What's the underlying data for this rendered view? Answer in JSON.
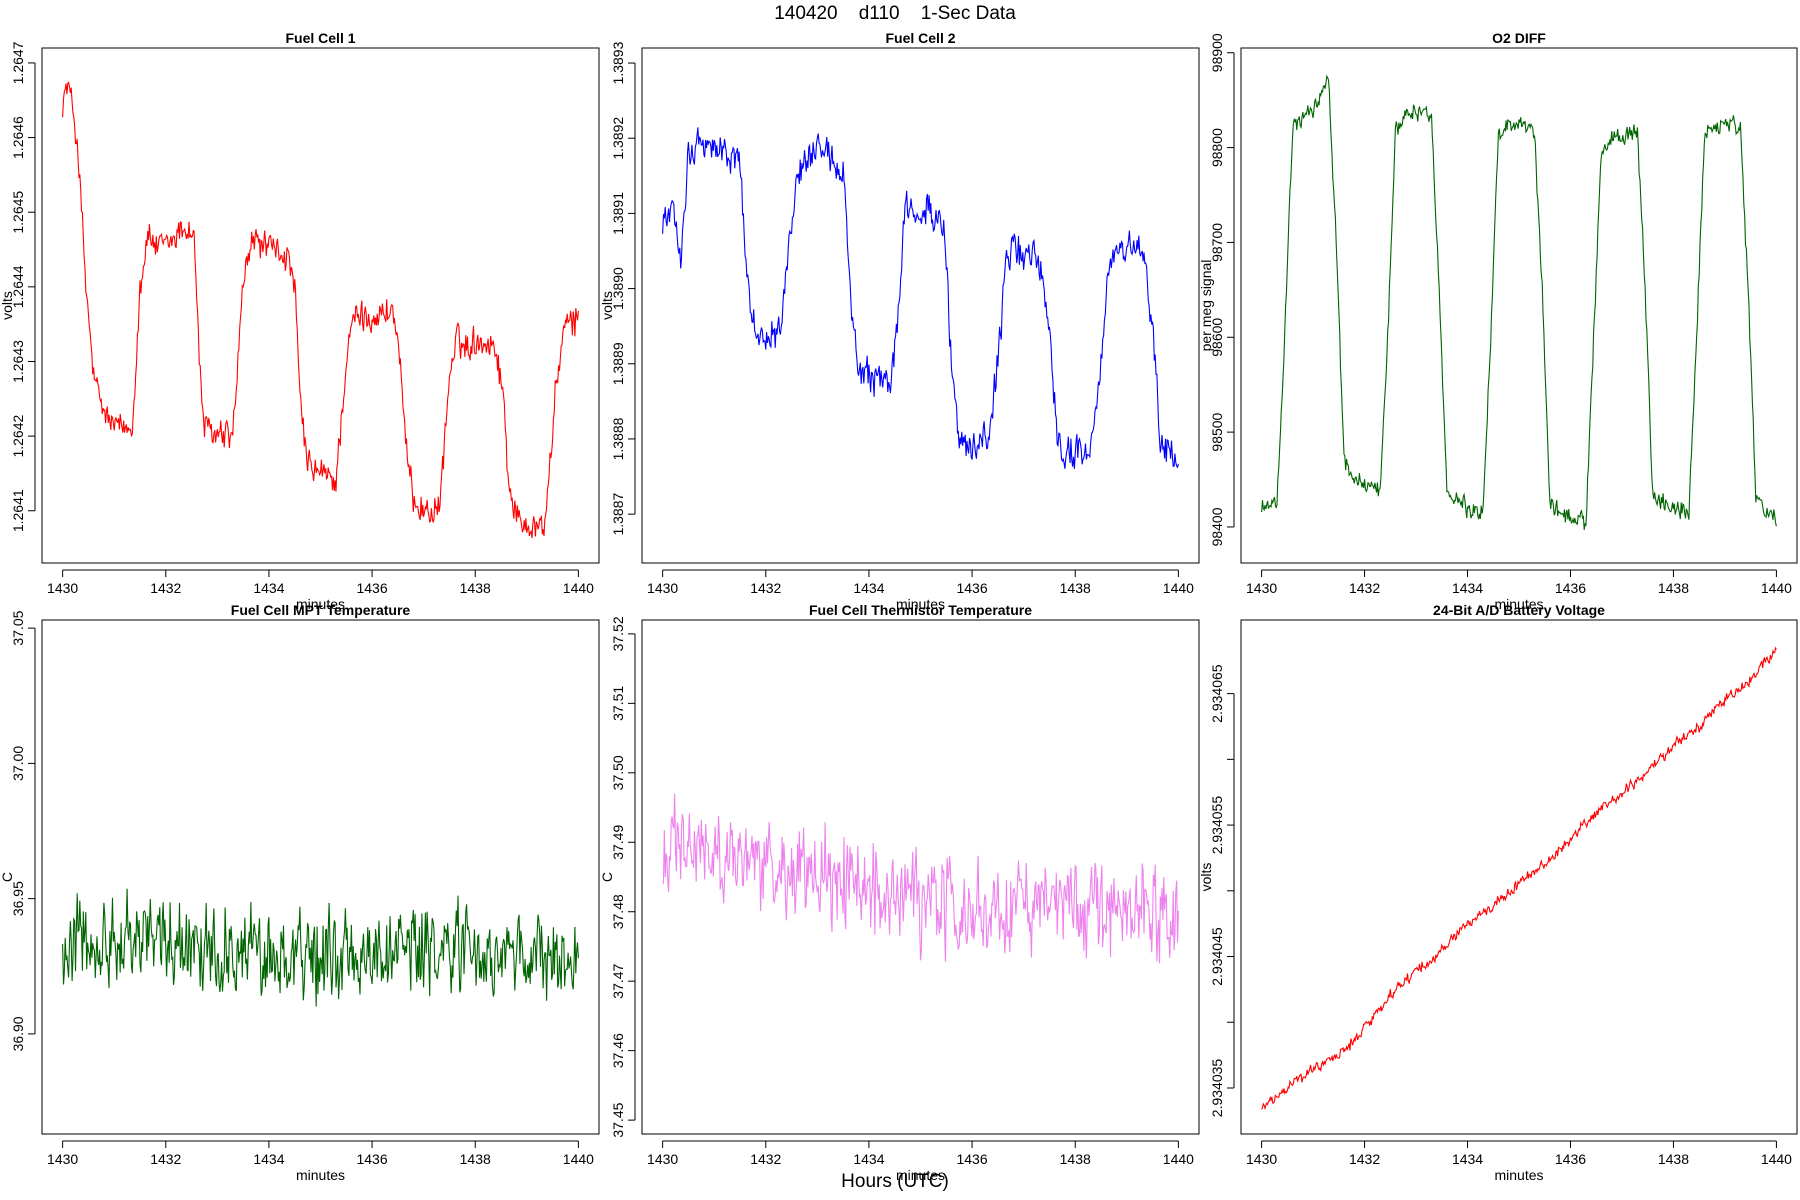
{
  "figure": {
    "title": "140420    d110    1-Sec Data",
    "footer": "Hours (UTC)"
  },
  "chart_data": [
    {
      "type": "line",
      "title": "Fuel Cell 1",
      "xlabel": "minutes",
      "ylabel": "volts",
      "color": "#ff0000",
      "xlim": [
        1429.6,
        1440.4
      ],
      "ylim": [
        1.26403,
        1.26472
      ],
      "xticks": [
        1430,
        1432,
        1434,
        1436,
        1438,
        1440
      ],
      "yticks": [
        1.2641,
        1.2642,
        1.2643,
        1.2644,
        1.2645,
        1.2646,
        1.2647
      ],
      "ytick_labels": [
        "1.2641",
        "1.2642",
        "1.2643",
        "1.2644",
        "1.2645",
        "1.2646",
        "1.2647"
      ],
      "noise": 2.8e-05,
      "x": [
        1430.0,
        1430.1,
        1430.2,
        1430.3,
        1430.45,
        1430.6,
        1430.75,
        1430.9,
        1431.1,
        1431.35,
        1431.5,
        1431.65,
        1431.85,
        1432.1,
        1432.35,
        1432.55,
        1432.65,
        1432.75,
        1433.0,
        1433.3,
        1433.5,
        1433.65,
        1433.8,
        1434.1,
        1434.35,
        1434.5,
        1434.6,
        1434.75,
        1435.0,
        1435.3,
        1435.5,
        1435.65,
        1435.8,
        1436.1,
        1436.4,
        1436.55,
        1436.65,
        1436.8,
        1437.0,
        1437.3,
        1437.5,
        1437.65,
        1437.8,
        1438.1,
        1438.4,
        1438.55,
        1438.65,
        1438.8,
        1439.1,
        1439.35,
        1439.55,
        1439.7,
        1439.85,
        1440.0
      ],
      "y": [
        1.26465,
        1.26467,
        1.26464,
        1.26458,
        1.2644,
        1.26428,
        1.26424,
        1.26422,
        1.26421,
        1.26421,
        1.2644,
        1.26447,
        1.26445,
        1.26446,
        1.26448,
        1.26447,
        1.2643,
        1.26421,
        1.2642,
        1.2642,
        1.2644,
        1.26446,
        1.26446,
        1.26445,
        1.26444,
        1.2644,
        1.26425,
        1.26416,
        1.26415,
        1.26414,
        1.2643,
        1.26436,
        1.26436,
        1.26436,
        1.26437,
        1.2643,
        1.26418,
        1.26412,
        1.2641,
        1.2641,
        1.26428,
        1.26433,
        1.26432,
        1.26433,
        1.26432,
        1.26425,
        1.26414,
        1.26409,
        1.26408,
        1.26408,
        1.26425,
        1.26434,
        1.26435,
        1.26436
      ]
    },
    {
      "type": "line",
      "title": "Fuel Cell 2",
      "xlabel": "minutes",
      "ylabel": "volts",
      "color": "#0000ff",
      "xlim": [
        1429.6,
        1440.4
      ],
      "ylim": [
        1.388635,
        1.38932
      ],
      "xticks": [
        1430,
        1432,
        1434,
        1436,
        1438,
        1440
      ],
      "yticks": [
        1.3887,
        1.3888,
        1.3889,
        1.389,
        1.3891,
        1.3892,
        1.3893
      ],
      "ytick_labels": [
        "1.3887",
        "1.3888",
        "1.3889",
        "1.3890",
        "1.3891",
        "1.3892",
        "1.3893"
      ],
      "noise": 3e-05,
      "x": [
        1430.0,
        1430.2,
        1430.35,
        1430.5,
        1430.7,
        1430.9,
        1431.2,
        1431.5,
        1431.65,
        1431.8,
        1432.0,
        1432.3,
        1432.45,
        1432.6,
        1432.8,
        1433.0,
        1433.3,
        1433.5,
        1433.65,
        1433.8,
        1434.1,
        1434.4,
        1434.55,
        1434.7,
        1434.9,
        1435.2,
        1435.45,
        1435.6,
        1435.75,
        1436.0,
        1436.3,
        1436.5,
        1436.65,
        1436.8,
        1437.0,
        1437.3,
        1437.5,
        1437.65,
        1437.8,
        1438.0,
        1438.3,
        1438.5,
        1438.65,
        1438.8,
        1439.0,
        1439.3,
        1439.5,
        1439.65,
        1439.8,
        1440.0
      ],
      "y": [
        1.38909,
        1.3891,
        1.38905,
        1.38918,
        1.3892,
        1.38919,
        1.38918,
        1.38917,
        1.389,
        1.38894,
        1.38894,
        1.38895,
        1.38905,
        1.38915,
        1.38917,
        1.38918,
        1.38917,
        1.38915,
        1.38899,
        1.38888,
        1.38888,
        1.38887,
        1.38895,
        1.3891,
        1.38911,
        1.3891,
        1.38908,
        1.3889,
        1.3888,
        1.38879,
        1.3888,
        1.3889,
        1.38903,
        1.38905,
        1.38905,
        1.38904,
        1.38895,
        1.3888,
        1.38878,
        1.38878,
        1.38879,
        1.3889,
        1.38903,
        1.38905,
        1.38905,
        1.38905,
        1.38895,
        1.3888,
        1.38878,
        1.38877
      ]
    },
    {
      "type": "line",
      "title": "O2 DIFF",
      "xlabel": "minutes",
      "ylabel": "per meg signal",
      "color": "#006400",
      "xlim": [
        1429.6,
        1440.4
      ],
      "ylim": [
        98362,
        98905
      ],
      "xticks": [
        1430,
        1432,
        1434,
        1436,
        1438,
        1440
      ],
      "yticks": [
        98400,
        98500,
        98600,
        98700,
        98800,
        98900
      ],
      "ytick_labels": [
        "98400",
        "98500",
        "98600",
        "98700",
        "98800",
        "98900"
      ],
      "noise": 13,
      "x": [
        1430.0,
        1430.3,
        1430.45,
        1430.6,
        1430.8,
        1431.0,
        1431.3,
        1431.45,
        1431.6,
        1431.8,
        1432.0,
        1432.3,
        1432.45,
        1432.6,
        1432.8,
        1433.0,
        1433.3,
        1433.45,
        1433.6,
        1433.8,
        1434.0,
        1434.3,
        1434.45,
        1434.6,
        1434.8,
        1435.0,
        1435.3,
        1435.45,
        1435.6,
        1435.8,
        1436.0,
        1436.3,
        1436.45,
        1436.6,
        1436.8,
        1437.0,
        1437.3,
        1437.45,
        1437.6,
        1437.8,
        1438.0,
        1438.3,
        1438.45,
        1438.6,
        1438.8,
        1439.0,
        1439.3,
        1439.45,
        1439.6,
        1439.8,
        1440.0
      ],
      "y": [
        98420,
        98425,
        98600,
        98820,
        98830,
        98840,
        98870,
        98700,
        98470,
        98450,
        98445,
        98440,
        98600,
        98820,
        98835,
        98840,
        98830,
        98650,
        98440,
        98430,
        98420,
        98415,
        98600,
        98815,
        98825,
        98825,
        98815,
        98650,
        98425,
        98415,
        98410,
        98405,
        98600,
        98800,
        98810,
        98810,
        98815,
        98650,
        98430,
        98425,
        98420,
        98415,
        98600,
        98810,
        98825,
        98825,
        98820,
        98650,
        98430,
        98415,
        98410
      ]
    },
    {
      "type": "line",
      "title": "Fuel Cell MPT Temperature",
      "xlabel": "minutes",
      "ylabel": "C",
      "color": "#006400",
      "xlim": [
        1429.6,
        1440.4
      ],
      "ylim": [
        36.863,
        37.053
      ],
      "xticks": [
        1430,
        1432,
        1434,
        1436,
        1438,
        1440
      ],
      "yticks": [
        36.9,
        36.95,
        37.0,
        37.05
      ],
      "ytick_labels": [
        "36.90",
        "36.95",
        "37.00",
        "37.05"
      ],
      "noise": 0.022,
      "x": [
        1430.0,
        1431.0,
        1432.0,
        1433.0,
        1434.0,
        1435.0,
        1436.0,
        1437.0,
        1438.0,
        1439.0,
        1440.0
      ],
      "y": [
        36.935,
        36.936,
        36.935,
        36.932,
        36.93,
        36.928,
        36.93,
        36.932,
        36.93,
        36.928,
        36.925
      ]
    },
    {
      "type": "line",
      "title": "Fuel Cell Thermistor Temperature",
      "xlabel": "minutes",
      "ylabel": "C",
      "color": "#ee82ee",
      "xlim": [
        1429.6,
        1440.4
      ],
      "ylim": [
        37.448,
        37.522
      ],
      "xticks": [
        1430,
        1432,
        1434,
        1436,
        1438,
        1440
      ],
      "yticks": [
        37.45,
        37.46,
        37.47,
        37.48,
        37.49,
        37.5,
        37.51,
        37.52
      ],
      "ytick_labels": [
        "37.45",
        "37.46",
        "37.47",
        "37.48",
        "37.49",
        "37.50",
        "37.51",
        "37.52"
      ],
      "noise": 0.009,
      "x": [
        1430.0,
        1431.0,
        1432.0,
        1433.0,
        1434.0,
        1435.0,
        1436.0,
        1437.0,
        1438.0,
        1439.0,
        1440.0
      ],
      "y": [
        37.488,
        37.488,
        37.486,
        37.485,
        37.483,
        37.481,
        37.48,
        37.481,
        37.481,
        37.48,
        37.479
      ]
    },
    {
      "type": "line",
      "title": "24-Bit A/D Battery Voltage",
      "xlabel": "minutes",
      "ylabel": "volts",
      "color": "#ff0000",
      "xlim": [
        1429.6,
        1440.4
      ],
      "ylim": [
        2.9340315,
        2.9340706
      ],
      "xticks": [
        1430,
        1432,
        1434,
        1436,
        1438,
        1440
      ],
      "yticks": [
        2.934035,
        2.93404,
        2.934045,
        2.93405,
        2.934055,
        2.93406,
        2.934065
      ],
      "ytick_labels": [
        "2.934035",
        "",
        "2.934045",
        "",
        "2.934055",
        "",
        "2.934065"
      ],
      "noise": 6e-07,
      "x": [
        1430.0,
        1430.5,
        1431.0,
        1431.5,
        1432.0,
        1432.5,
        1433.0,
        1433.5,
        1434.0,
        1434.5,
        1435.0,
        1435.5,
        1436.0,
        1436.5,
        1437.0,
        1437.5,
        1438.0,
        1438.5,
        1439.0,
        1439.5,
        1440.0
      ],
      "y": [
        2.9340335,
        2.934035,
        2.9340365,
        2.9340375,
        2.9340395,
        2.934042,
        2.934044,
        2.9340455,
        2.9340475,
        2.934049,
        2.9340505,
        2.934052,
        2.934054,
        2.934056,
        2.9340575,
        2.934059,
        2.934061,
        2.9340625,
        2.9340645,
        2.934066,
        2.9340685
      ]
    }
  ]
}
